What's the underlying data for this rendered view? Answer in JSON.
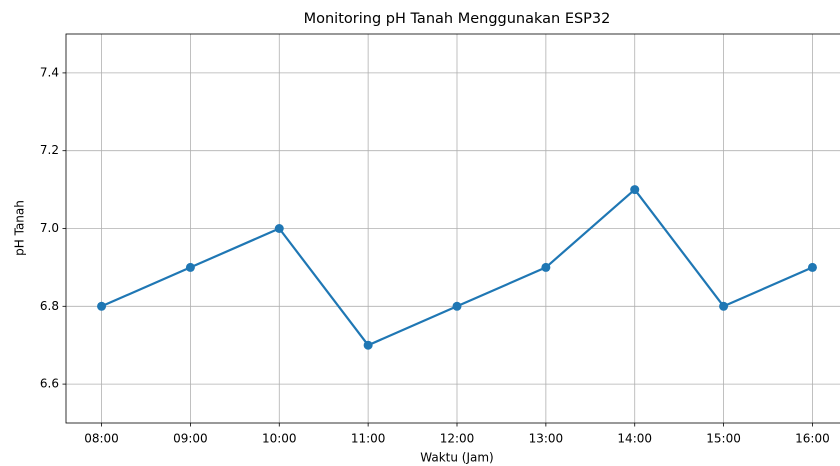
{
  "chart_data": {
    "type": "line",
    "title": "Monitoring pH Tanah Menggunakan ESP32",
    "x_label": "Waktu (Jam)",
    "y_label": "pH Tanah",
    "categories": [
      "08:00",
      "09:00",
      "10:00",
      "11:00",
      "12:00",
      "13:00",
      "14:00",
      "15:00",
      "16:00"
    ],
    "series": [
      {
        "color": "#1f77b4",
        "values": [
          6.8,
          6.9,
          7.0,
          6.7,
          6.8,
          6.9,
          7.1,
          6.8,
          6.9
        ]
      }
    ],
    "ylim": [
      6.5,
      7.5
    ],
    "yticks": [
      6.6,
      6.8,
      {
        "value": 7.0,
        "label": "7.0"
      },
      7.2,
      7.4
    ],
    "grid": true,
    "markers": true
  }
}
